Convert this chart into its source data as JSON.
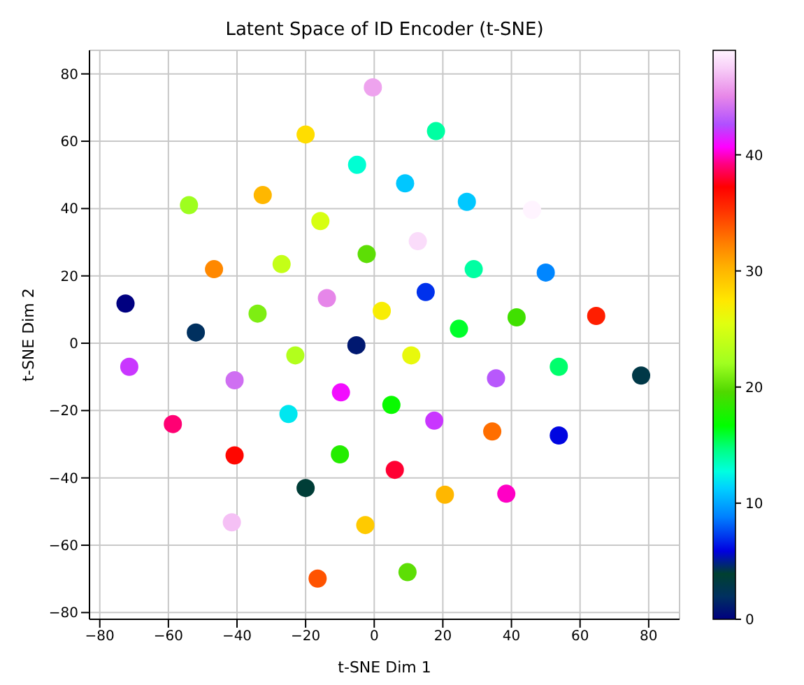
{
  "chart_data": {
    "type": "scatter",
    "title": "Latent Space of ID Encoder (t-SNE)",
    "xlabel": "t-SNE Dim 1",
    "ylabel": "t-SNE Dim 2",
    "xlim": [
      -83,
      89
    ],
    "ylim": [
      -82,
      87
    ],
    "xticks": [
      -80,
      -60,
      -40,
      -20,
      0,
      20,
      40,
      60,
      80
    ],
    "yticks": [
      -80,
      -60,
      -40,
      -20,
      0,
      20,
      40,
      60,
      80
    ],
    "grid": true,
    "marker": "circle",
    "clim": [
      0,
      49
    ],
    "cticks": [
      0,
      10,
      20,
      30,
      40
    ],
    "x": [
      -0.4,
      -20,
      18,
      -5,
      9,
      27,
      46,
      -54,
      -32.5,
      -15.7,
      -46.7,
      -27,
      -2.2,
      -72.5,
      -13.8,
      -34,
      -52,
      2.2,
      12.7,
      29,
      50,
      15,
      41.5,
      64.7,
      24.7,
      10.8,
      -5.2,
      -71.4,
      -23,
      -40.7,
      -9.7,
      -58.7,
      -25,
      -40.7,
      -10,
      -20,
      -41.5,
      -2.6,
      -16.5,
      5,
      53.8,
      35.5,
      77.8,
      17.5,
      34.4,
      53.8,
      6,
      20.6,
      38.5,
      9.7
    ],
    "values": [
      76,
      62,
      63,
      53,
      47.5,
      42,
      39.6,
      41,
      44,
      36.3,
      22,
      23.5,
      26.5,
      11.8,
      13.4,
      8.8,
      3.2,
      9.6,
      30.3,
      22,
      21,
      15.2,
      7.7,
      8.1,
      4.3,
      -3.6,
      -0.6,
      -7,
      -3.6,
      -11,
      -14.6,
      -24,
      -21,
      -33.3,
      -33,
      -43,
      -53.2,
      -54,
      -69.9,
      -18.3,
      -7,
      -10.4,
      -9.6,
      -23,
      -26.2,
      -27.4,
      -37.6,
      -45,
      -44.7,
      -68
    ],
    "cvalues": [
      46,
      28,
      14,
      13,
      11,
      11,
      49,
      22,
      30,
      25,
      32,
      24,
      20,
      0,
      45,
      21,
      2,
      27,
      48,
      14,
      9,
      7,
      19,
      36,
      16,
      26,
      1,
      42,
      23,
      44,
      41,
      39,
      12,
      37,
      18,
      4,
      47,
      29,
      34,
      17,
      15,
      43,
      3,
      42,
      33,
      6,
      38,
      30,
      40,
      20
    ]
  }
}
